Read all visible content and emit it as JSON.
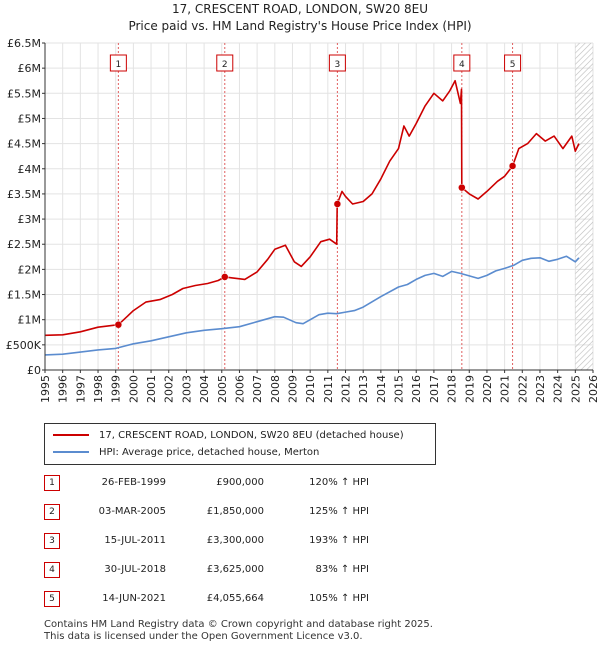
{
  "title_line1": "17, CRESCENT ROAD, LONDON, SW20 8EU",
  "title_line2": "Price paid vs. HM Land Registry's House Price Index (HPI)",
  "chart_data": {
    "type": "line",
    "xlim": [
      1995,
      2026
    ],
    "ylim": [
      0,
      6500000
    ],
    "x_ticks": [
      "1995",
      "1996",
      "1997",
      "1998",
      "1999",
      "2000",
      "2001",
      "2002",
      "2003",
      "2004",
      "2005",
      "2006",
      "2007",
      "2008",
      "2009",
      "2010",
      "2011",
      "2012",
      "2013",
      "2014",
      "2015",
      "2016",
      "2017",
      "2018",
      "2019",
      "2020",
      "2021",
      "2022",
      "2023",
      "2024",
      "2025",
      "2026"
    ],
    "y_ticks": [
      {
        "value": 0,
        "label": "£0"
      },
      {
        "value": 500000,
        "label": "£500K"
      },
      {
        "value": 1000000,
        "label": "£1M"
      },
      {
        "value": 1500000,
        "label": "£1.5M"
      },
      {
        "value": 2000000,
        "label": "£2M"
      },
      {
        "value": 2500000,
        "label": "£2.5M"
      },
      {
        "value": 3000000,
        "label": "£3M"
      },
      {
        "value": 3500000,
        "label": "£3.5M"
      },
      {
        "value": 4000000,
        "label": "£4M"
      },
      {
        "value": 4500000,
        "label": "£4.5M"
      },
      {
        "value": 5000000,
        "label": "£5M"
      },
      {
        "value": 5500000,
        "label": "£5.5M"
      },
      {
        "value": 6000000,
        "label": "£6M"
      },
      {
        "value": 6500000,
        "label": "£6.5M"
      }
    ],
    "series": [
      {
        "name": "17, CRESCENT ROAD, LONDON, SW20 8EU (detached house)",
        "color": "#cc0000",
        "points": [
          [
            1995.0,
            690000
          ],
          [
            1996.0,
            700000
          ],
          [
            1997.0,
            760000
          ],
          [
            1998.0,
            850000
          ],
          [
            1999.15,
            900000
          ],
          [
            2000.0,
            1180000
          ],
          [
            2000.7,
            1350000
          ],
          [
            2001.5,
            1400000
          ],
          [
            2002.2,
            1500000
          ],
          [
            2002.8,
            1620000
          ],
          [
            2003.5,
            1680000
          ],
          [
            2004.2,
            1720000
          ],
          [
            2004.8,
            1780000
          ],
          [
            2005.17,
            1850000
          ],
          [
            2005.6,
            1830000
          ],
          [
            2006.3,
            1800000
          ],
          [
            2007.0,
            1950000
          ],
          [
            2007.6,
            2200000
          ],
          [
            2008.0,
            2400000
          ],
          [
            2008.6,
            2480000
          ],
          [
            2009.1,
            2150000
          ],
          [
            2009.5,
            2060000
          ],
          [
            2010.0,
            2250000
          ],
          [
            2010.6,
            2550000
          ],
          [
            2011.1,
            2600000
          ],
          [
            2011.5,
            2500000
          ],
          [
            2011.53,
            3300000
          ],
          [
            2011.8,
            3550000
          ],
          [
            2012.0,
            3450000
          ],
          [
            2012.4,
            3300000
          ],
          [
            2013.0,
            3350000
          ],
          [
            2013.5,
            3500000
          ],
          [
            2014.0,
            3800000
          ],
          [
            2014.5,
            4150000
          ],
          [
            2015.0,
            4400000
          ],
          [
            2015.3,
            4850000
          ],
          [
            2015.6,
            4650000
          ],
          [
            2016.0,
            4900000
          ],
          [
            2016.5,
            5250000
          ],
          [
            2017.0,
            5500000
          ],
          [
            2017.5,
            5350000
          ],
          [
            2017.9,
            5550000
          ],
          [
            2018.2,
            5750000
          ],
          [
            2018.5,
            5300000
          ],
          [
            2018.56,
            5580000
          ],
          [
            2018.58,
            3625000
          ],
          [
            2019.0,
            3500000
          ],
          [
            2019.5,
            3400000
          ],
          [
            2020.0,
            3550000
          ],
          [
            2020.6,
            3750000
          ],
          [
            2021.0,
            3850000
          ],
          [
            2021.45,
            4055664
          ],
          [
            2021.8,
            4400000
          ],
          [
            2022.3,
            4500000
          ],
          [
            2022.8,
            4700000
          ],
          [
            2023.3,
            4550000
          ],
          [
            2023.8,
            4650000
          ],
          [
            2024.3,
            4400000
          ],
          [
            2024.8,
            4650000
          ],
          [
            2025.0,
            4350000
          ],
          [
            2025.2,
            4500000
          ]
        ]
      },
      {
        "name": "HPI: Average price, detached house, Merton",
        "color": "#5b8ccf",
        "points": [
          [
            1995.0,
            300000
          ],
          [
            1996.0,
            315000
          ],
          [
            1997.0,
            355000
          ],
          [
            1998.0,
            400000
          ],
          [
            1999.0,
            430000
          ],
          [
            2000.0,
            520000
          ],
          [
            2001.0,
            580000
          ],
          [
            2002.0,
            660000
          ],
          [
            2003.0,
            740000
          ],
          [
            2004.0,
            790000
          ],
          [
            2005.0,
            820000
          ],
          [
            2006.0,
            860000
          ],
          [
            2007.0,
            960000
          ],
          [
            2008.0,
            1060000
          ],
          [
            2008.5,
            1050000
          ],
          [
            2009.2,
            940000
          ],
          [
            2009.6,
            920000
          ],
          [
            2010.0,
            1000000
          ],
          [
            2010.5,
            1100000
          ],
          [
            2011.0,
            1130000
          ],
          [
            2011.5,
            1120000
          ],
          [
            2012.0,
            1150000
          ],
          [
            2012.5,
            1180000
          ],
          [
            2013.0,
            1250000
          ],
          [
            2014.0,
            1460000
          ],
          [
            2015.0,
            1650000
          ],
          [
            2015.5,
            1700000
          ],
          [
            2016.0,
            1800000
          ],
          [
            2016.5,
            1880000
          ],
          [
            2017.0,
            1920000
          ],
          [
            2017.5,
            1860000
          ],
          [
            2018.0,
            1960000
          ],
          [
            2018.5,
            1920000
          ],
          [
            2019.0,
            1870000
          ],
          [
            2019.5,
            1820000
          ],
          [
            2020.0,
            1880000
          ],
          [
            2020.5,
            1970000
          ],
          [
            2021.0,
            2020000
          ],
          [
            2021.5,
            2080000
          ],
          [
            2022.0,
            2180000
          ],
          [
            2022.5,
            2220000
          ],
          [
            2023.0,
            2230000
          ],
          [
            2023.5,
            2160000
          ],
          [
            2024.0,
            2200000
          ],
          [
            2024.5,
            2260000
          ],
          [
            2025.0,
            2150000
          ],
          [
            2025.2,
            2230000
          ]
        ]
      }
    ],
    "sales": [
      {
        "label": "1",
        "x": 1999.15,
        "price": 900000,
        "date": "26-FEB-1999",
        "price_text": "£900,000",
        "hpi": "120% ↑ HPI"
      },
      {
        "label": "2",
        "x": 2005.17,
        "price": 1850000,
        "date": "03-MAR-2005",
        "price_text": "£1,850,000",
        "hpi": "125% ↑ HPI"
      },
      {
        "label": "3",
        "x": 2011.54,
        "price": 3300000,
        "date": "15-JUL-2011",
        "price_text": "£3,300,000",
        "hpi": "193% ↑ HPI"
      },
      {
        "label": "4",
        "x": 2018.58,
        "price": 3625000,
        "date": "30-JUL-2018",
        "price_text": "£3,625,000",
        "hpi": "83% ↑ HPI"
      },
      {
        "label": "5",
        "x": 2021.45,
        "price": 4055664,
        "date": "14-JUN-2021",
        "price_text": "£4,055,664",
        "hpi": "105% ↑ HPI"
      }
    ],
    "hatched_from": 2025.0
  },
  "legend": {
    "line1": "17, CRESCENT ROAD, LONDON, SW20 8EU (detached house)",
    "line2": "HPI: Average price, detached house, Merton",
    "color1": "#cc0000",
    "color2": "#5b8ccf"
  },
  "footer": {
    "line1": "Contains HM Land Registry data © Crown copyright and database right 2025.",
    "line2": "This data is licensed under the Open Government Licence v3.0."
  }
}
